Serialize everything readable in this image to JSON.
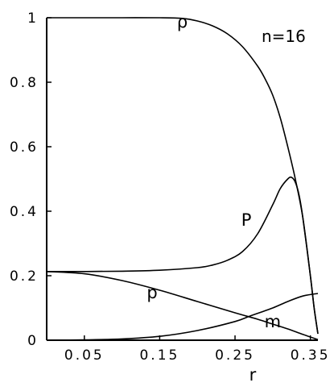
{
  "chart_data": {
    "type": "line",
    "title": "",
    "xlabel": "r",
    "ylabel": "",
    "annotation": "n=16",
    "xlim": [
      0,
      0.36
    ],
    "ylim": [
      0,
      1
    ],
    "grid": false,
    "legend": "none",
    "x_ticks": [
      {
        "value": 0.05,
        "label": "0.05"
      },
      {
        "value": 0.15,
        "label": "0.15"
      },
      {
        "value": 0.25,
        "label": "0.25"
      },
      {
        "value": 0.35,
        "label": "0.35"
      }
    ],
    "y_ticks": [
      {
        "value": 0,
        "label": "0"
      },
      {
        "value": 0.2,
        "label": "0.2"
      },
      {
        "value": 0.4,
        "label": "0.4"
      },
      {
        "value": 0.6,
        "label": "0.6"
      },
      {
        "value": 0.8,
        "label": "0.8"
      },
      {
        "value": 1,
        "label": "1"
      }
    ],
    "series": [
      {
        "name": "ρ",
        "label_at": [
          0.18,
          0.97
        ],
        "points": [
          [
            0,
            1
          ],
          [
            0.05,
            1
          ],
          [
            0.1,
            1
          ],
          [
            0.15,
            1
          ],
          [
            0.18,
            0.998
          ],
          [
            0.2,
            0.99
          ],
          [
            0.22,
            0.975
          ],
          [
            0.24,
            0.95
          ],
          [
            0.26,
            0.91
          ],
          [
            0.28,
            0.85
          ],
          [
            0.29,
            0.81
          ],
          [
            0.3,
            0.76
          ],
          [
            0.31,
            0.69
          ],
          [
            0.32,
            0.6
          ],
          [
            0.33,
            0.5
          ],
          [
            0.34,
            0.38
          ],
          [
            0.35,
            0.2
          ],
          [
            0.355,
            0.1
          ],
          [
            0.36,
            0.02
          ]
        ]
      },
      {
        "name": "P",
        "label_at": [
          0.265,
          0.355
        ],
        "points": [
          [
            0,
            0.213
          ],
          [
            0.05,
            0.213
          ],
          [
            0.1,
            0.214
          ],
          [
            0.15,
            0.217
          ],
          [
            0.2,
            0.225
          ],
          [
            0.22,
            0.233
          ],
          [
            0.24,
            0.248
          ],
          [
            0.26,
            0.275
          ],
          [
            0.28,
            0.33
          ],
          [
            0.3,
            0.42
          ],
          [
            0.31,
            0.47
          ],
          [
            0.32,
            0.5
          ],
          [
            0.325,
            0.505
          ],
          [
            0.33,
            0.49
          ],
          [
            0.335,
            0.45
          ],
          [
            0.34,
            0.38
          ],
          [
            0.35,
            0.2
          ],
          [
            0.355,
            0.1
          ],
          [
            0.36,
            0.02
          ]
        ]
      },
      {
        "name": "p",
        "label_at": [
          0.14,
          0.13
        ],
        "points": [
          [
            0,
            0.213
          ],
          [
            0.05,
            0.206
          ],
          [
            0.1,
            0.185
          ],
          [
            0.15,
            0.155
          ],
          [
            0.2,
            0.12
          ],
          [
            0.25,
            0.085
          ],
          [
            0.28,
            0.065
          ],
          [
            0.3,
            0.05
          ],
          [
            0.32,
            0.035
          ],
          [
            0.34,
            0.018
          ],
          [
            0.36,
            0.002
          ]
        ]
      },
      {
        "name": "m",
        "label_at": [
          0.3,
          0.04
        ],
        "points": [
          [
            0,
            0
          ],
          [
            0.05,
            0.001
          ],
          [
            0.1,
            0.004
          ],
          [
            0.15,
            0.012
          ],
          [
            0.2,
            0.03
          ],
          [
            0.25,
            0.058
          ],
          [
            0.27,
            0.075
          ],
          [
            0.3,
            0.1
          ],
          [
            0.32,
            0.12
          ],
          [
            0.34,
            0.137
          ],
          [
            0.36,
            0.145
          ]
        ]
      }
    ]
  }
}
